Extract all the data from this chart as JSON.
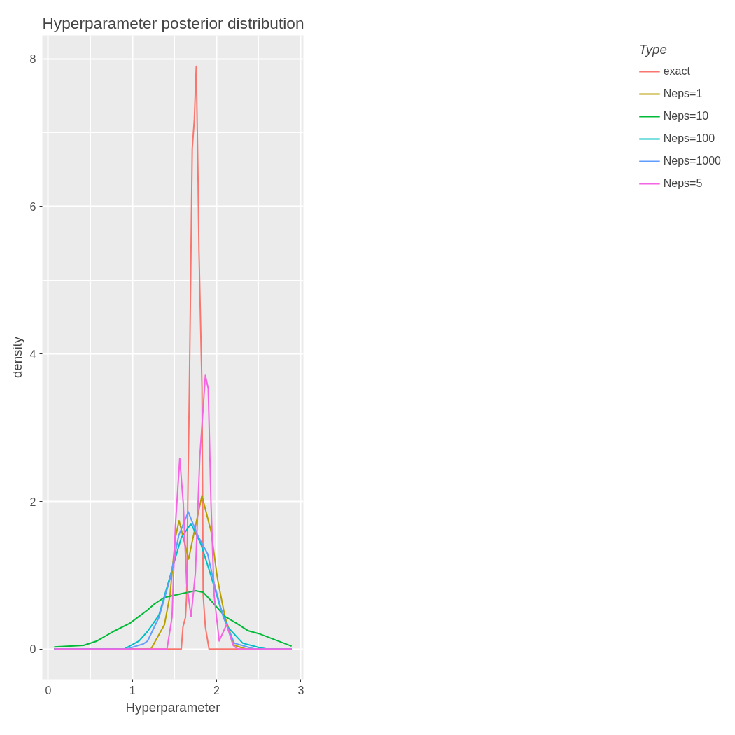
{
  "chart_data": {
    "type": "line",
    "title": "Hyperparameter posterior distribution",
    "xlabel": "Hyperparameter",
    "ylabel": "density",
    "legend_title": "Type",
    "legend": "right",
    "grid": true,
    "xlim": [
      -0.07,
      3.03
    ],
    "ylim": [
      -0.41,
      8.32
    ],
    "xticks": [
      0,
      1,
      2,
      3
    ],
    "yticks": [
      0,
      2,
      4,
      6,
      8
    ],
    "series": [
      {
        "name": "exact",
        "color": "#f8766d",
        "x": [
          0.07,
          1.58,
          1.6,
          1.63,
          1.644,
          1.657,
          1.676,
          1.71,
          1.735,
          1.758,
          1.78,
          1.79,
          1.826,
          1.84,
          1.866,
          1.91,
          2.89
        ],
        "values": [
          0,
          0,
          0.3,
          0.43,
          0.73,
          1.97,
          3.53,
          6.78,
          7.18,
          7.9,
          6.32,
          5.41,
          3.53,
          0.73,
          0.3,
          0,
          0
        ]
      },
      {
        "name": "Neps=1",
        "color": "#b79f00",
        "x": [
          0.07,
          1.22,
          1.38,
          1.446,
          1.51,
          1.554,
          1.604,
          1.667,
          1.736,
          1.825,
          1.933,
          2.01,
          2.1,
          2.21,
          2.35,
          2.89
        ],
        "values": [
          0,
          0,
          0.33,
          0.73,
          1.51,
          1.74,
          1.51,
          1.22,
          1.6,
          2.08,
          1.6,
          0.95,
          0.43,
          0.05,
          0,
          0
        ]
      },
      {
        "name": "Neps=10",
        "color": "#00ba38",
        "x": [
          0.07,
          0.42,
          0.58,
          0.776,
          0.97,
          1.18,
          1.26,
          1.38,
          1.58,
          1.75,
          1.84,
          1.97,
          2.1,
          2.235,
          2.37,
          2.5,
          2.89
        ],
        "values": [
          0.03,
          0.05,
          0.11,
          0.24,
          0.35,
          0.53,
          0.61,
          0.7,
          0.75,
          0.79,
          0.77,
          0.61,
          0.44,
          0.35,
          0.25,
          0.21,
          0.04
        ]
      },
      {
        "name": "Neps=100",
        "color": "#00bfc4",
        "x": [
          0.07,
          0.9,
          1.08,
          1.18,
          1.315,
          1.446,
          1.58,
          1.696,
          1.814,
          1.92,
          2.04,
          2.13,
          2.31,
          2.51,
          2.6,
          2.89
        ],
        "values": [
          0,
          0,
          0.11,
          0.24,
          0.46,
          0.98,
          1.51,
          1.7,
          1.42,
          1.04,
          0.58,
          0.3,
          0.08,
          0.02,
          0,
          0
        ]
      },
      {
        "name": "Neps=1000",
        "color": "#619cff",
        "x": [
          0.07,
          0.93,
          1.13,
          1.18,
          1.315,
          1.446,
          1.55,
          1.663,
          1.775,
          1.893,
          1.97,
          2.08,
          2.21,
          2.45,
          2.89
        ],
        "values": [
          0,
          0,
          0.07,
          0.11,
          0.43,
          0.95,
          1.54,
          1.86,
          1.54,
          1.29,
          0.89,
          0.43,
          0.08,
          0,
          0
        ]
      },
      {
        "name": "Neps=5",
        "color": "#f564e3",
        "x": [
          0.07,
          1.41,
          1.47,
          1.51,
          1.562,
          1.604,
          1.644,
          1.696,
          1.748,
          1.8,
          1.866,
          1.9,
          1.933,
          1.97,
          2.03,
          2.117,
          2.196,
          2.25,
          2.89
        ],
        "values": [
          0,
          0,
          0.43,
          1.67,
          2.58,
          1.97,
          0.89,
          0.44,
          1.04,
          2.6,
          3.71,
          3.53,
          1.97,
          0.73,
          0.11,
          0.33,
          0.05,
          0,
          0
        ]
      }
    ]
  }
}
